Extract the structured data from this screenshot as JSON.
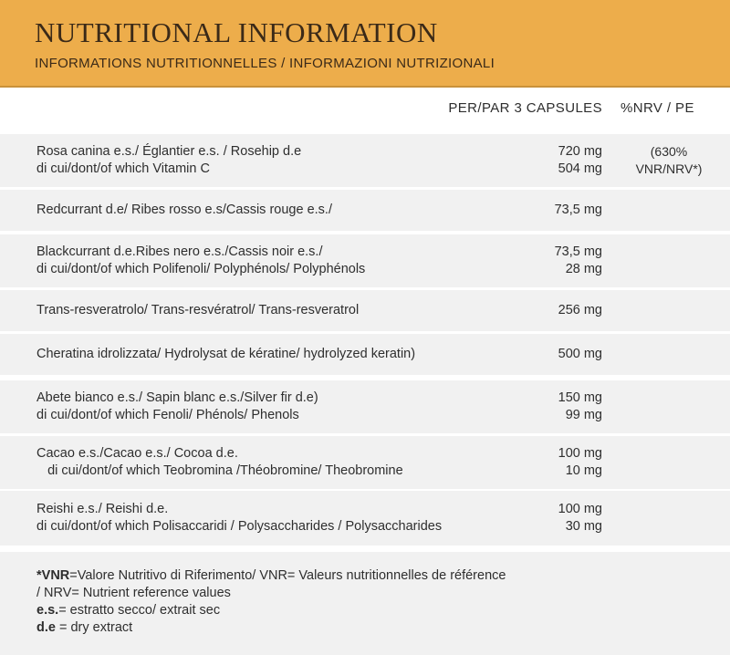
{
  "header": {
    "title": "NUTRITIONAL INFORMATION",
    "subtitle": "INFORMATIONS NUTRITIONNELLES / INFORMAZIONI NUTRIZIONALI"
  },
  "table": {
    "columns": [
      "PER/PAR 3 CAPSULES",
      "%NRV / PE"
    ],
    "rows": [
      {
        "lines": [
          "Rosa canina e.s./ Églantier e.s. / Rosehip d.e",
          "di cui/dont/of which Vitamin C"
        ],
        "amounts": [
          "720 mg",
          "504 mg"
        ],
        "nrv": [
          "(630%",
          "VNR/NRV*)"
        ]
      },
      {
        "lines": [
          "Redcurrant d.e/ Ribes rosso e.s/Cassis rouge e.s./"
        ],
        "amounts": [
          "73,5 mg"
        ]
      },
      {
        "lines": [
          "Blackcurrant d.e.Ribes nero e.s./Cassis noir e.s./",
          "di cui/dont/of which Polifenoli/ Polyphénols/ Polyphénols"
        ],
        "amounts": [
          "73,5 mg",
          "28 mg"
        ]
      },
      {
        "lines": [
          "Trans-resveratrolo/ Trans-resvératrol/ Trans-resveratrol"
        ],
        "amounts": [
          "256 mg"
        ]
      },
      {
        "lines": [
          "Cheratina idrolizzata/ Hydrolysat de kératine/ hydrolyzed keratin)"
        ],
        "amounts": [
          "500 mg"
        ]
      },
      {
        "lines": [
          "Abete bianco e.s./ Sapin blanc e.s./Silver fir d.e)",
          "di cui/dont/of which Fenoli/ Phénols/ Phenols"
        ],
        "amounts": [
          "150 mg",
          "99 mg"
        ]
      },
      {
        "lines": [
          "Cacao e.s./Cacao e.s./ Cocoa d.e.",
          "   di cui/dont/of which Teobromina /Théobromine/ Theobromine"
        ],
        "amounts": [
          "100 mg",
          "10 mg"
        ]
      },
      {
        "lines": [
          "Reishi e.s./ Reishi d.e.",
          "di cui/dont/of which Polisaccaridi / Polysaccharides / Polysaccharides"
        ],
        "amounts": [
          "100 mg",
          "30 mg"
        ]
      }
    ]
  },
  "footer": {
    "notes": [
      {
        "term": "*VNR",
        "text": "=Valore Nutritivo di Riferimento/ VNR= Valeurs nutritionnelles de référence"
      },
      {
        "text": "/ NRV= Nutrient reference values"
      },
      {
        "term": "e.s.",
        "text": "= estratto secco/ extrait sec"
      },
      {
        "term": "d.e",
        "text": " = dry extract"
      }
    ]
  }
}
